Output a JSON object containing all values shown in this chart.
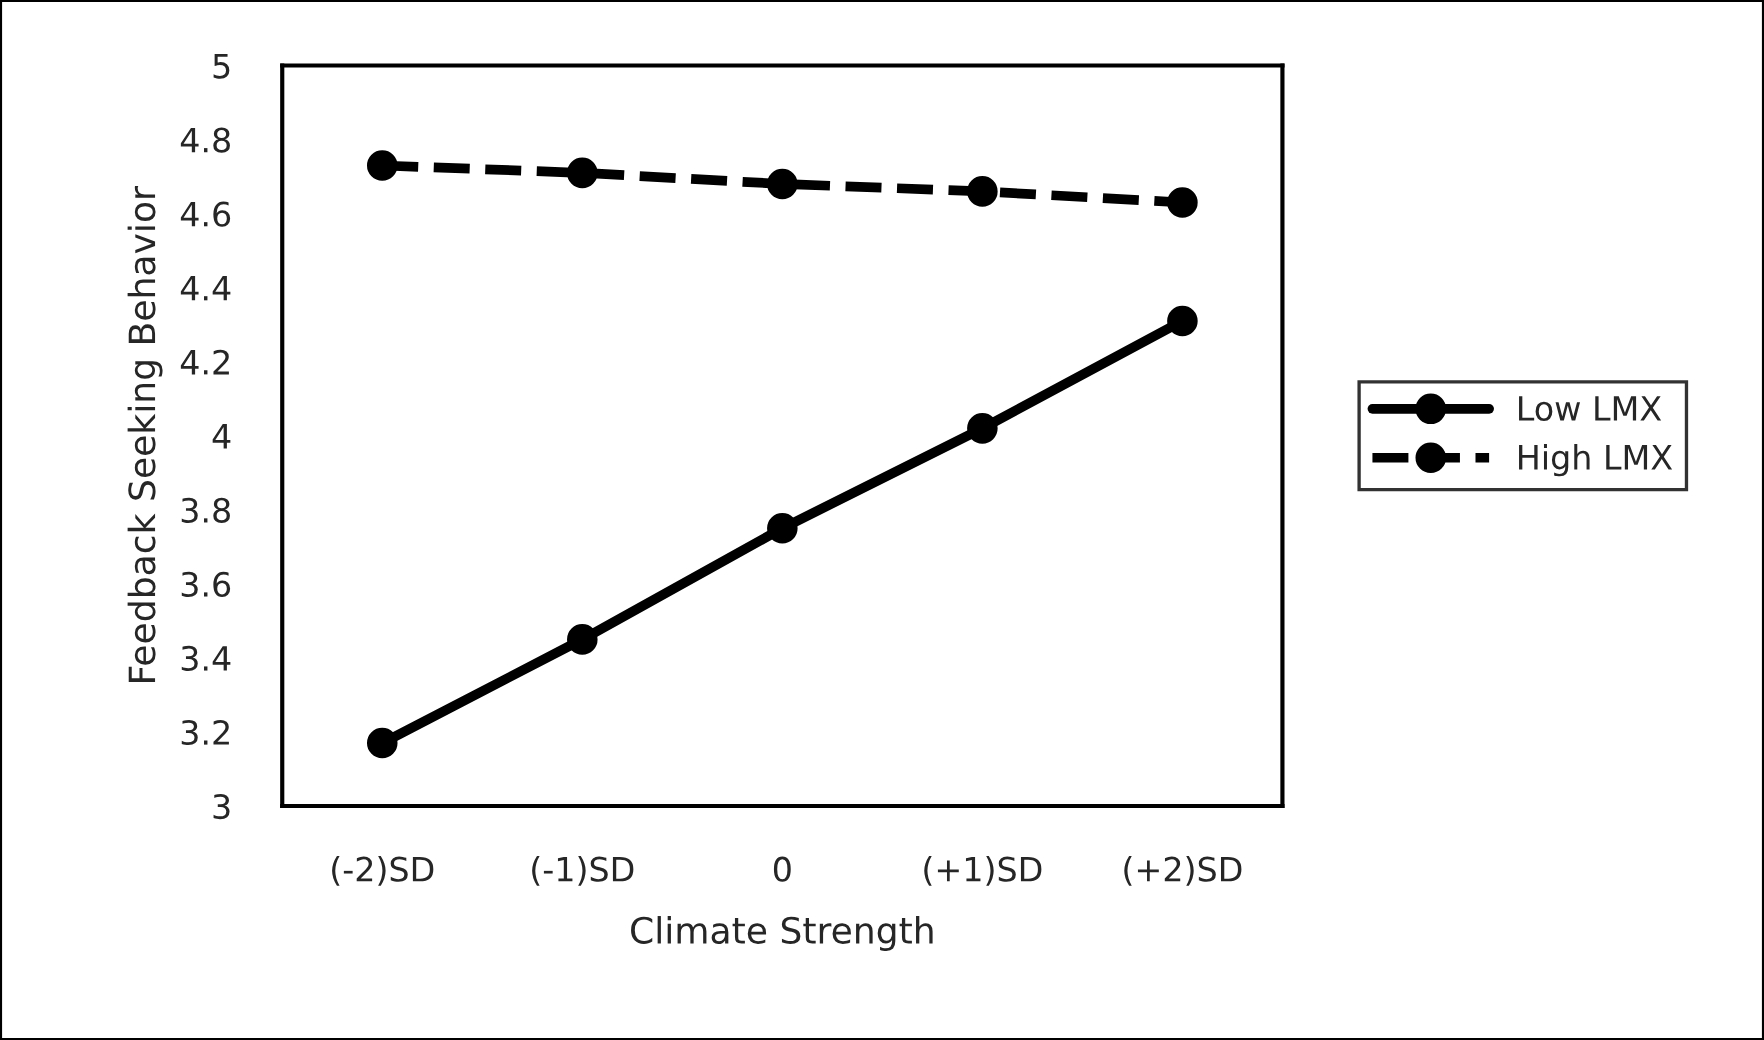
{
  "chart_data": {
    "type": "line",
    "xlabel": "Climate Strength",
    "ylabel": "Feedback Seeking Behavior",
    "categories": [
      "(-2)SD",
      "(-1)SD",
      "0",
      "(+1)SD",
      "(+2)SD"
    ],
    "series": [
      {
        "name": "Low LMX",
        "color": "#000000",
        "line_style": "solid",
        "values": [
          3.17,
          3.45,
          3.75,
          4.02,
          4.31
        ]
      },
      {
        "name": "High LMX",
        "color": "#000000",
        "line_style": "dashed",
        "values": [
          4.73,
          4.71,
          4.68,
          4.66,
          4.63
        ]
      }
    ],
    "ylim": [
      3,
      5
    ],
    "yticks": [
      3,
      3.2,
      3.4,
      3.6,
      3.8,
      4,
      4.2,
      4.4,
      4.6,
      4.8,
      5
    ],
    "marker": "circle",
    "grid": false,
    "legend": "right"
  }
}
